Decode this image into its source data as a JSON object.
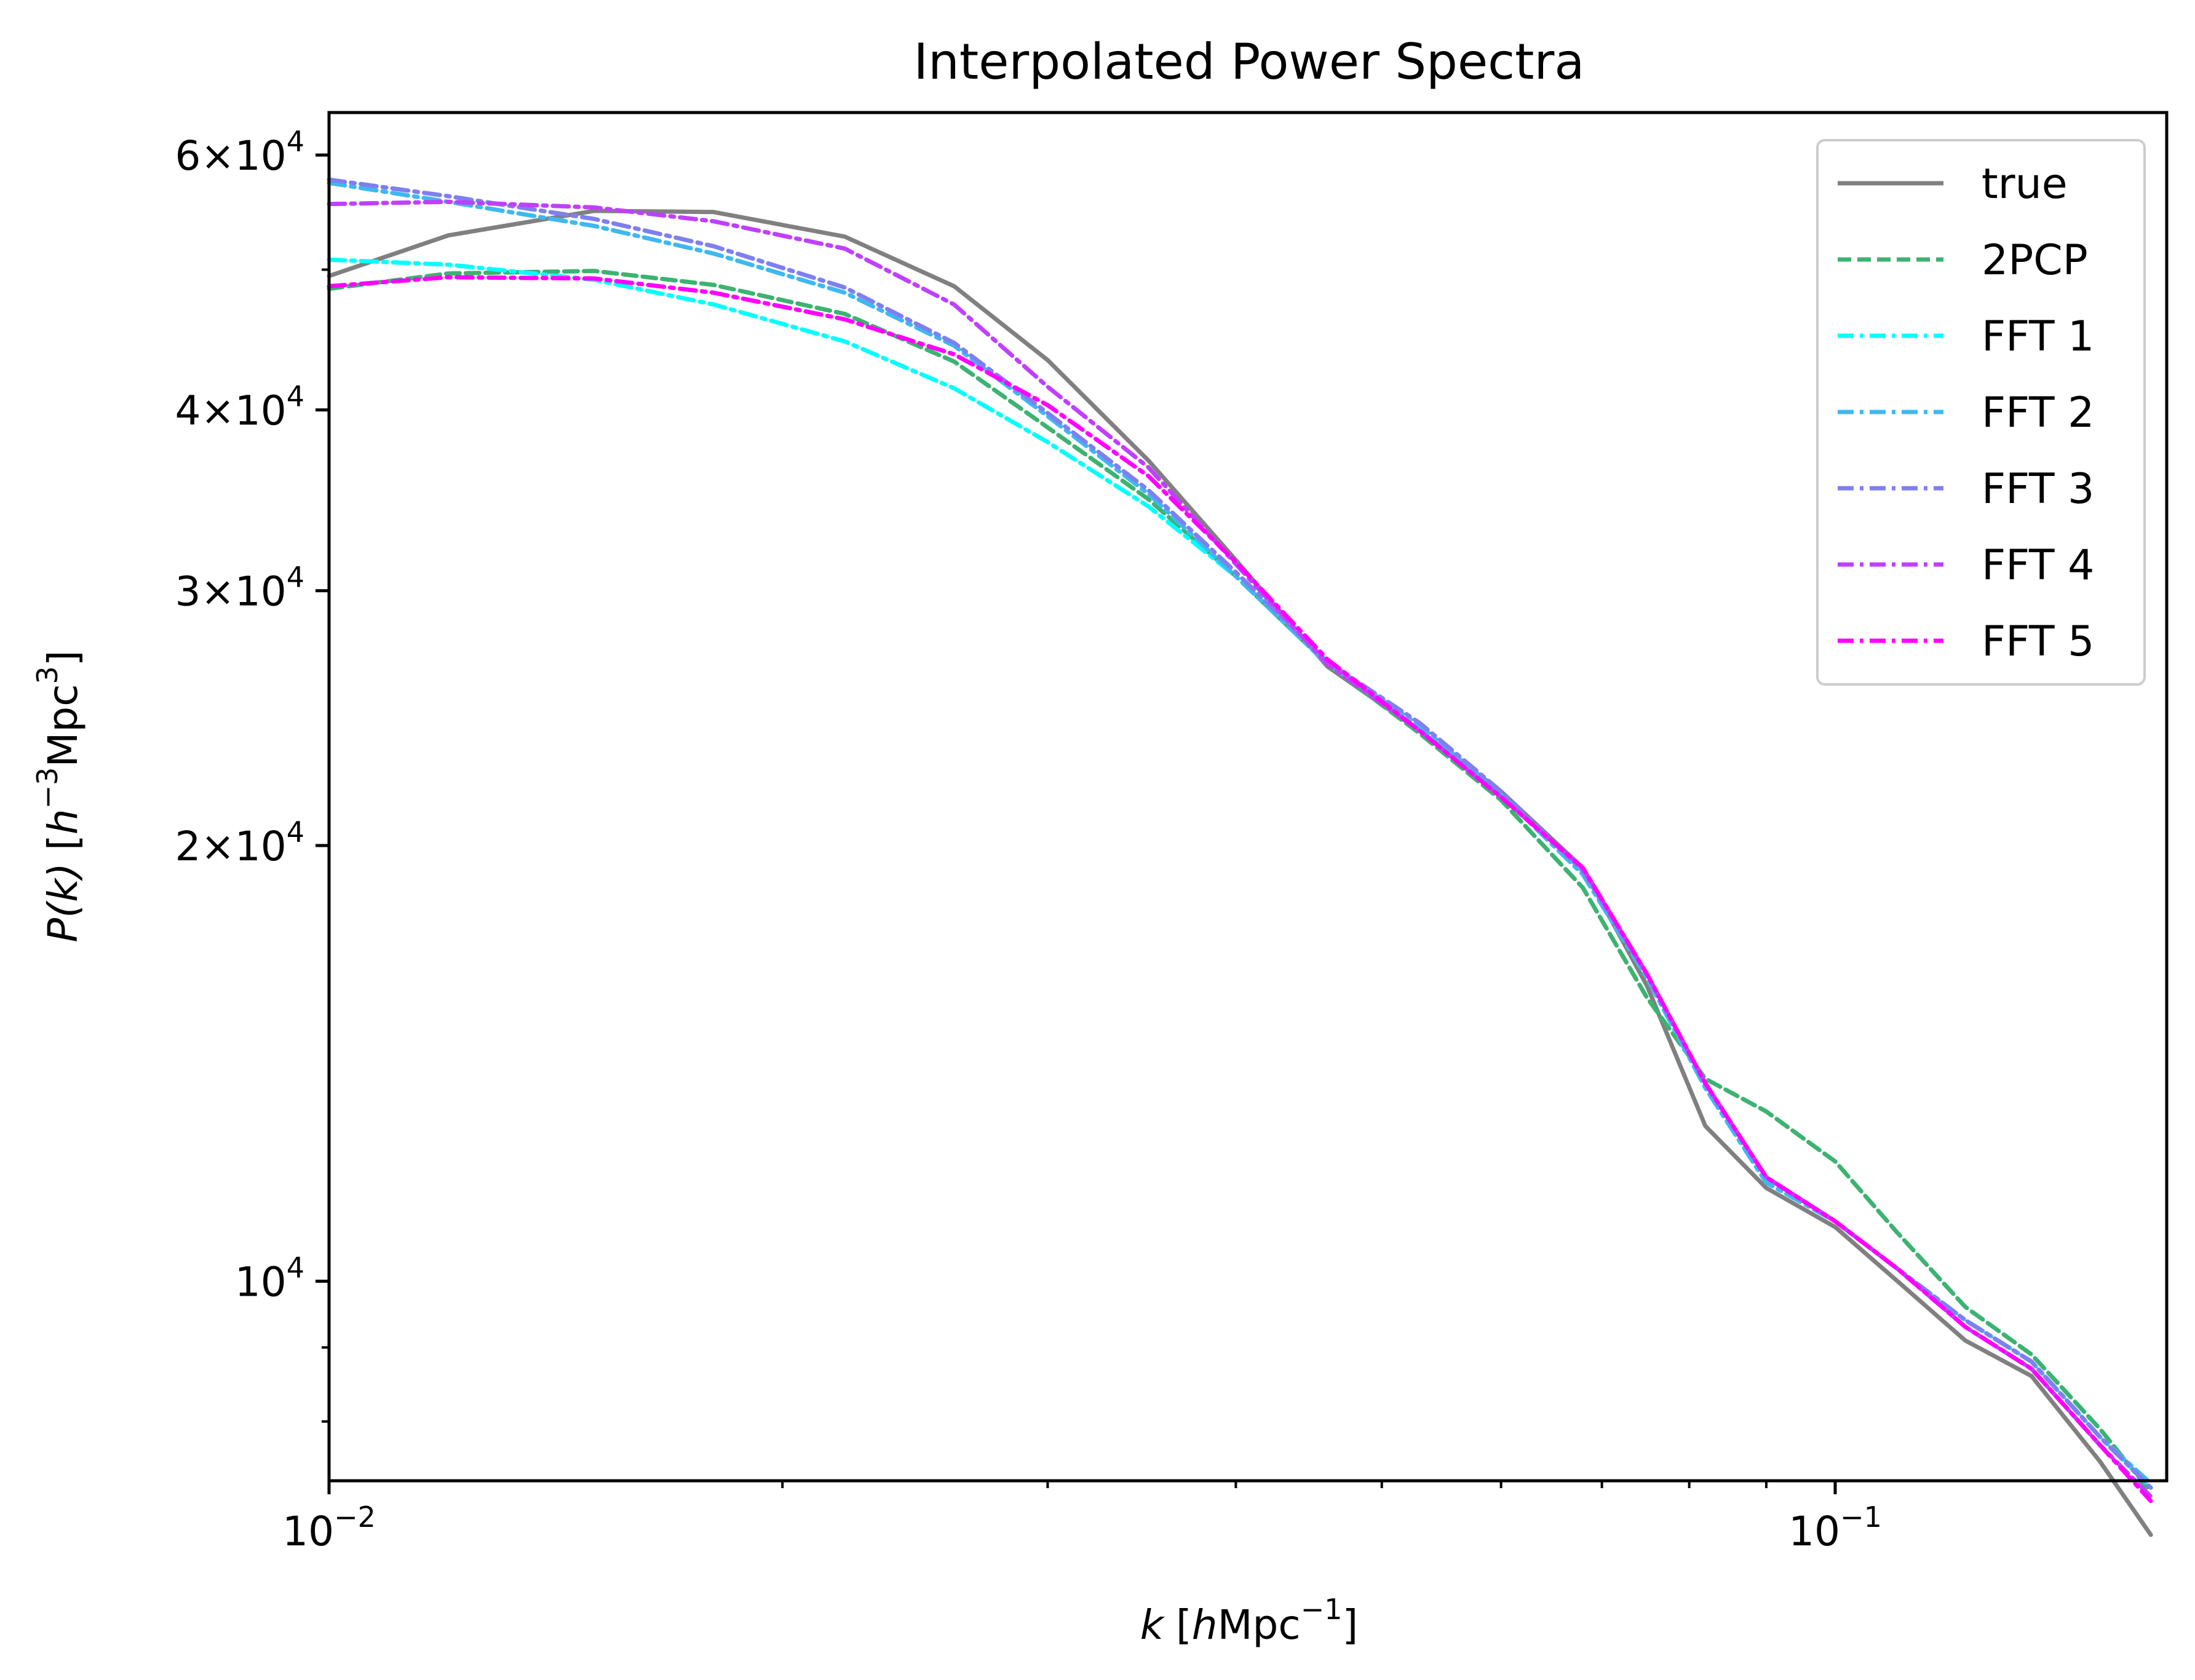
{
  "chart_data": {
    "type": "line",
    "title": "Interpolated Power Spectra",
    "xlabel": {
      "var": "k",
      "unit_pre": "[",
      "unit_h": "h",
      "unit_main": "Mpc",
      "unit_exp": "−1",
      "unit_post": "]"
    },
    "ylabel": {
      "var": "P(k)",
      "unit_pre": "[",
      "unit_h": "h",
      "unit_h_exp": "−3",
      "unit_main": "Mpc",
      "unit_exp": "3",
      "unit_post": "]"
    },
    "xscale": "log",
    "yscale": "log",
    "xlim": [
      0.01,
      0.166
    ],
    "ylim": [
      7280,
      64200
    ],
    "x_ticks": [
      {
        "value": 0.01,
        "base": "10",
        "exp": "−2"
      },
      {
        "value": 0.1,
        "base": "10",
        "exp": "−1"
      }
    ],
    "y_ticks": [
      {
        "value": 10000,
        "mant": "",
        "base": "10",
        "exp": "4"
      },
      {
        "value": 20000,
        "mant": "2",
        "base": "10",
        "exp": "4"
      },
      {
        "value": 30000,
        "mant": "3",
        "base": "10",
        "exp": "4"
      },
      {
        "value": 40000,
        "mant": "4",
        "base": "10",
        "exp": "4"
      },
      {
        "value": 60000,
        "mant": "6",
        "base": "10",
        "exp": "4"
      }
    ],
    "x_minor_ticks": [
      0.02,
      0.03,
      0.04,
      0.05,
      0.06,
      0.07,
      0.08,
      0.09
    ],
    "y_minor_ticks": [
      8000,
      9000,
      50000
    ],
    "grid": false,
    "legend_position": "top-right",
    "x": [
      0.01,
      0.012,
      0.015,
      0.018,
      0.022,
      0.026,
      0.03,
      0.035,
      0.04,
      0.046,
      0.053,
      0.06,
      0.068,
      0.075,
      0.082,
      0.09,
      0.1,
      0.11,
      0.122,
      0.135,
      0.15,
      0.162
    ],
    "series": [
      {
        "name": "true",
        "color": "#808080",
        "dash": "solid",
        "values": [
          49500,
          52800,
          54900,
          54800,
          52700,
          48700,
          43300,
          36900,
          31500,
          26600,
          24000,
          21800,
          19300,
          16000,
          12800,
          11600,
          10900,
          10000,
          9100,
          8600,
          7500,
          6680
        ]
      },
      {
        "name": "2PCP",
        "color": "#3cb371",
        "dash": "dashed",
        "values": [
          48500,
          49700,
          49900,
          48800,
          46600,
          43200,
          38900,
          34700,
          30700,
          26700,
          23900,
          21500,
          18700,
          15700,
          13800,
          13100,
          12100,
          10800,
          9600,
          8900,
          7900,
          7150
        ]
      },
      {
        "name": "FFT 1",
        "color": "#00ffff",
        "dash": "dashdot",
        "values": [
          50800,
          50400,
          49200,
          47300,
          44600,
          41400,
          38000,
          34300,
          30700,
          26800,
          24200,
          21700,
          19100,
          16200,
          13600,
          11700,
          11000,
          10200,
          9400,
          8800,
          7800,
          7200
        ]
      },
      {
        "name": "FFT 2",
        "color": "#3eb8f0",
        "dash": "dashdot",
        "values": [
          57400,
          55700,
          53600,
          51300,
          48200,
          44300,
          39600,
          35000,
          30700,
          26700,
          24200,
          21700,
          19100,
          16200,
          13600,
          11700,
          11000,
          10200,
          9400,
          8800,
          7800,
          7250
        ]
      },
      {
        "name": "FFT 3",
        "color": "#7f7ff0",
        "dash": "dashdot",
        "values": [
          57700,
          56200,
          54200,
          51900,
          48600,
          44500,
          39800,
          35200,
          30900,
          26800,
          24300,
          21800,
          19200,
          16300,
          13700,
          11800,
          11000,
          10200,
          9400,
          8800,
          7800,
          7200
        ]
      },
      {
        "name": "FFT 4",
        "color": "#bf40ff",
        "dash": "dashdot",
        "values": [
          55500,
          55700,
          55200,
          54000,
          51700,
          47300,
          41500,
          36500,
          31300,
          26700,
          24000,
          21600,
          19300,
          16300,
          13700,
          11800,
          11000,
          10200,
          9300,
          8700,
          7700,
          7100
        ]
      },
      {
        "name": "FFT 5",
        "color": "#ff00ff",
        "dash": "dashdot",
        "values": [
          48700,
          49400,
          49300,
          48200,
          46200,
          43700,
          40300,
          36000,
          31400,
          26900,
          24000,
          21600,
          19300,
          16300,
          13700,
          11800,
          11000,
          10200,
          9300,
          8700,
          7700,
          7050
        ]
      }
    ]
  }
}
